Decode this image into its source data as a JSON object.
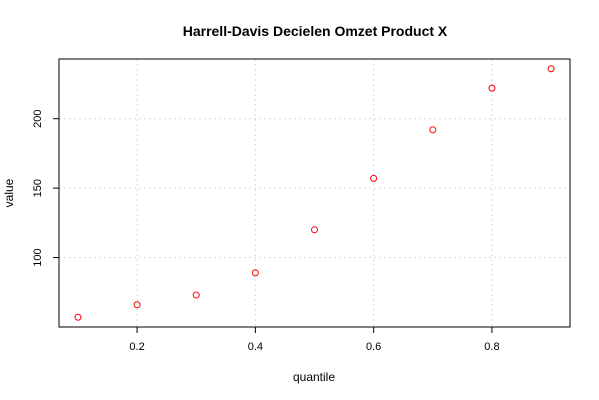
{
  "chart_data": {
    "type": "scatter",
    "title": "Harrell-Davis Decielen Omzet Product X",
    "xlabel": "quantile",
    "ylabel": "value",
    "x": [
      0.1,
      0.2,
      0.3,
      0.4,
      0.5,
      0.6,
      0.7,
      0.8,
      0.9
    ],
    "y": [
      57,
      66,
      73,
      89,
      120,
      157,
      192,
      222,
      236
    ],
    "xlim": [
      0.068,
      0.932
    ],
    "ylim": [
      50,
      243
    ],
    "xticks": [
      0.2,
      0.4,
      0.6,
      0.8
    ],
    "xtick_labels": [
      "0.2",
      "0.4",
      "0.6",
      "0.8"
    ],
    "yticks": [
      100,
      150,
      200
    ],
    "ytick_labels": [
      "100",
      "150",
      "200"
    ],
    "grid": true,
    "point_color": "#ff0000"
  }
}
